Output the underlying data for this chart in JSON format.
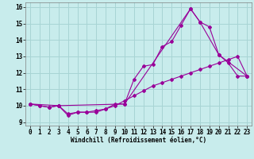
{
  "title": "",
  "xlabel": "Windchill (Refroidissement éolien,°C)",
  "ylabel": "",
  "background_color": "#c8ecec",
  "grid_color": "#a8d4d4",
  "line_color": "#990099",
  "xlim": [
    -0.5,
    23.5
  ],
  "ylim": [
    8.8,
    16.3
  ],
  "yticks": [
    9,
    10,
    11,
    12,
    13,
    14,
    15,
    16
  ],
  "xticks": [
    0,
    1,
    2,
    3,
    4,
    5,
    6,
    7,
    8,
    9,
    10,
    11,
    12,
    13,
    14,
    15,
    16,
    17,
    18,
    19,
    20,
    21,
    22,
    23
  ],
  "series1_x": [
    0,
    1,
    2,
    3,
    4,
    5,
    6,
    7,
    8,
    9,
    10,
    11,
    12,
    13,
    14,
    15,
    16,
    17,
    18,
    19,
    20,
    21,
    22,
    23
  ],
  "series1_y": [
    10.1,
    10.0,
    9.9,
    10.0,
    9.4,
    9.6,
    9.6,
    9.6,
    9.8,
    10.1,
    10.1,
    11.6,
    12.4,
    12.5,
    13.6,
    13.9,
    14.9,
    15.9,
    15.1,
    14.8,
    13.1,
    12.6,
    11.8,
    11.8
  ],
  "series2_x": [
    0,
    3,
    10,
    17,
    18,
    20,
    23
  ],
  "series2_y": [
    10.1,
    10.0,
    10.1,
    15.9,
    15.1,
    13.1,
    11.8
  ],
  "series3_x": [
    0,
    1,
    2,
    3,
    4,
    5,
    6,
    7,
    8,
    9,
    10,
    11,
    12,
    13,
    14,
    15,
    16,
    17,
    18,
    19,
    20,
    21,
    22,
    23
  ],
  "series3_y": [
    10.1,
    10.0,
    9.9,
    10.0,
    9.5,
    9.6,
    9.6,
    9.7,
    9.8,
    10.0,
    10.3,
    10.6,
    10.9,
    11.2,
    11.4,
    11.6,
    11.8,
    12.0,
    12.2,
    12.4,
    12.6,
    12.8,
    13.0,
    11.8
  ],
  "xlabel_fontsize": 5.5,
  "tick_fontsize": 5.5
}
